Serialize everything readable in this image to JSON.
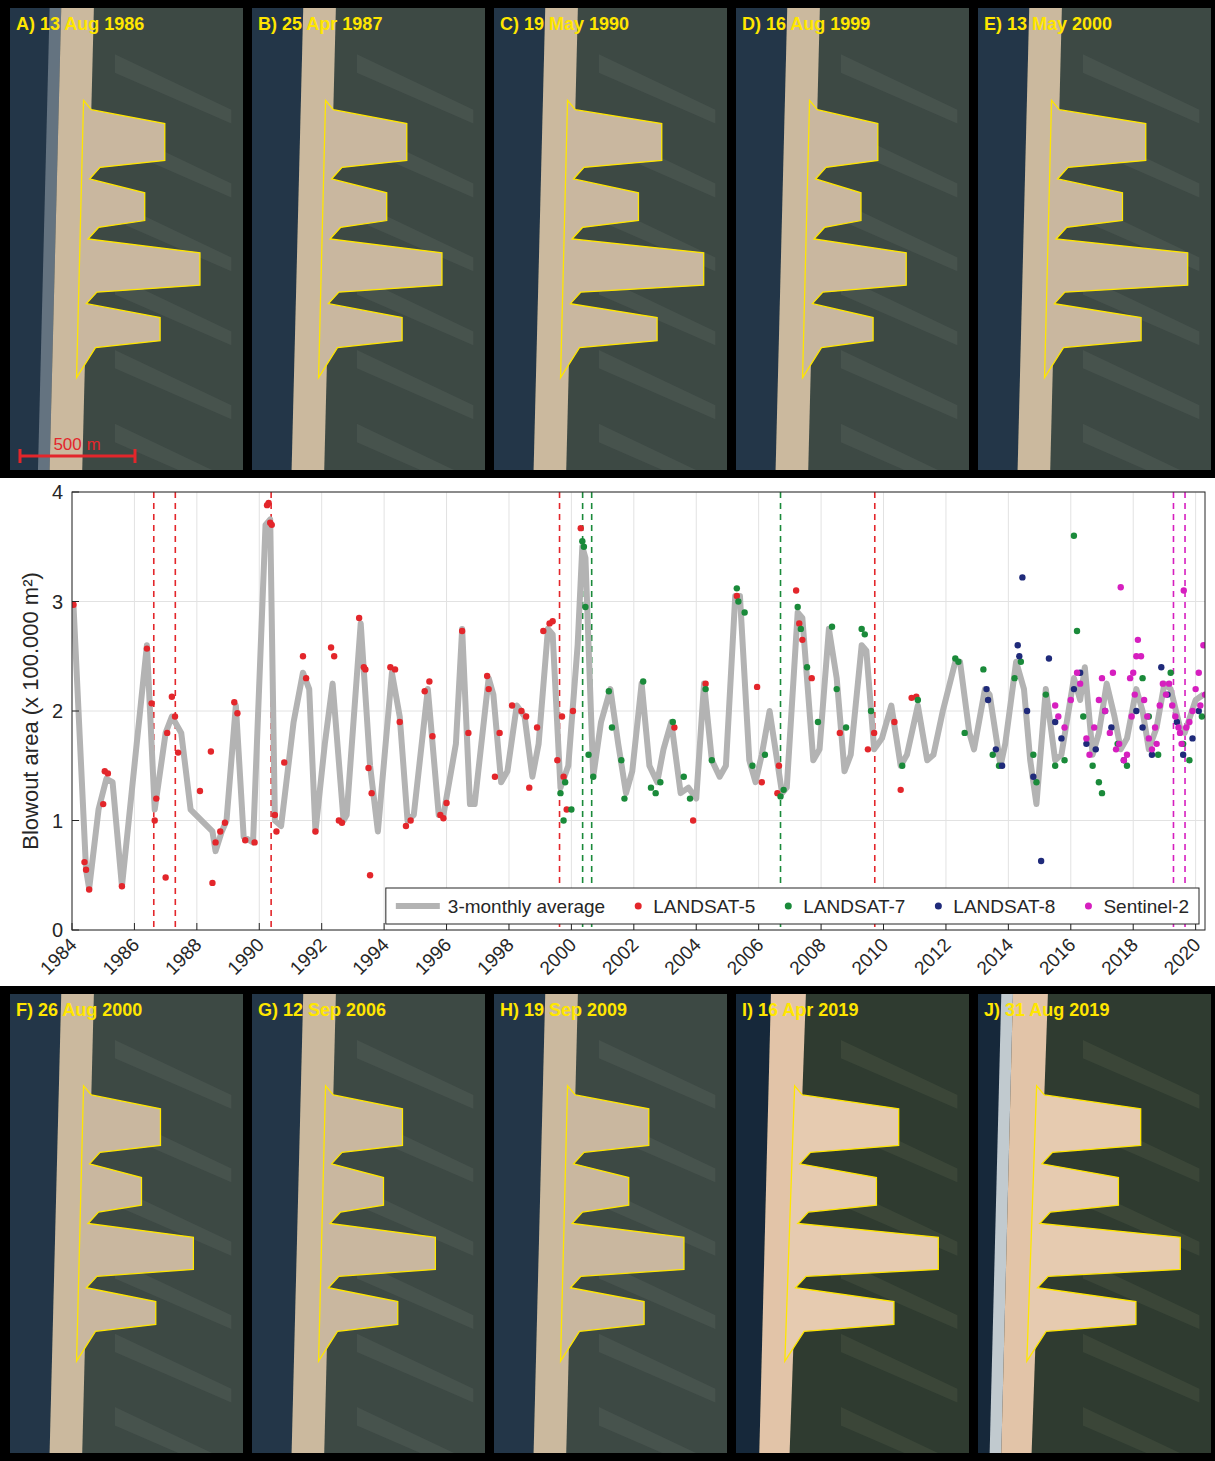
{
  "images": {
    "scale_bar": "500 m",
    "top": [
      "A) 13 Aug 1986",
      "B) 25 Apr 1987",
      "C) 19 May 1990",
      "D) 16 Aug 1999",
      "E) 13 May 2000"
    ],
    "bottom": [
      "F) 26 Aug 2000",
      "G) 12 Sep 2006",
      "H) 19 Sep 2009",
      "I) 16 Apr 2019",
      "J) 31 Aug 2019"
    ]
  },
  "chart_data": {
    "type": "line",
    "y_label": "Blowout area (x 100.000 m²)",
    "xlim": [
      1984,
      2020.3
    ],
    "xticks": [
      1984,
      1986,
      1988,
      1990,
      1992,
      1994,
      1996,
      1998,
      2000,
      2002,
      2004,
      2006,
      2008,
      2010,
      2012,
      2014,
      2016,
      2018,
      2020
    ],
    "ylim": [
      0,
      4
    ],
    "yticks": [
      0,
      1,
      2,
      3,
      4
    ],
    "grid": true,
    "legend": "lower right",
    "series": [
      {
        "name": "3-monthly average",
        "type": "line",
        "line_style": "solid",
        "color": "#b3b3b3",
        "x": [
          1984.05,
          1984.45,
          1984.55,
          1984.85,
          1985.1,
          1985.3,
          1985.6,
          1986.4,
          1986.65,
          1987.0,
          1987.2,
          1987.5,
          1987.8,
          1988.5,
          1988.6,
          1988.8,
          1988.95,
          1989.25,
          1989.5,
          1989.8,
          1990.2,
          1990.35,
          1990.5,
          1990.7,
          1991.1,
          1991.4,
          1991.6,
          1991.8,
          1992.1,
          1992.35,
          1992.7,
          1992.8,
          1993.25,
          1993.55,
          1993.8,
          1994.25,
          1994.5,
          1994.75,
          1994.95,
          1995.4,
          1995.75,
          1995.9,
          1996.3,
          1996.5,
          1996.75,
          1996.9,
          1997.35,
          1997.5,
          1997.75,
          1997.95,
          1998.25,
          1998.5,
          1998.75,
          1998.95,
          1999.25,
          1999.4,
          1999.65,
          1999.9,
          2000.2,
          2000.35,
          2000.45,
          2000.7,
          2000.95,
          2001.25,
          2001.5,
          2001.75,
          2001.95,
          2002.25,
          2002.5,
          2002.75,
          2002.95,
          2003.2,
          2003.5,
          2003.75,
          2004.0,
          2004.25,
          2004.5,
          2004.75,
          2004.95,
          2005.25,
          2005.4,
          2005.7,
          2005.9,
          2006.1,
          2006.35,
          2006.75,
          2006.9,
          2007.25,
          2007.4,
          2007.75,
          2007.95,
          2008.25,
          2008.5,
          2008.75,
          2008.95,
          2009.3,
          2009.45,
          2009.7,
          2009.95,
          2010.25,
          2010.55,
          2010.75,
          2011.1,
          2011.4,
          2011.6,
          2011.9,
          2012.3,
          2012.45,
          2012.75,
          2012.9,
          2013.25,
          2013.4,
          2013.75,
          2013.9,
          2014.25,
          2014.5,
          2014.7,
          2014.9,
          2015.2,
          2015.5,
          2015.7,
          2016.1,
          2016.3,
          2016.45,
          2016.7,
          2016.9,
          2017.15,
          2017.4,
          2017.6,
          2017.8,
          2018.1,
          2018.3,
          2018.5,
          2018.75,
          2019.0,
          2019.2,
          2019.5,
          2019.65,
          2020.0,
          2020.25
        ],
        "values": [
          2.95,
          0.55,
          0.38,
          1.1,
          1.38,
          1.35,
          0.4,
          2.6,
          1.1,
          1.8,
          1.95,
          1.8,
          1.1,
          0.9,
          0.72,
          0.9,
          1.0,
          2.05,
          0.85,
          0.8,
          3.7,
          3.75,
          1.0,
          0.95,
          1.9,
          2.35,
          2.2,
          0.9,
          1.7,
          2.25,
          1.0,
          1.05,
          2.8,
          1.5,
          0.9,
          2.35,
          1.95,
          1.0,
          1.05,
          2.2,
          1.05,
          1.05,
          1.7,
          2.75,
          1.15,
          1.15,
          2.3,
          2.15,
          1.35,
          1.45,
          2.05,
          1.95,
          1.4,
          1.7,
          2.75,
          2.7,
          1.3,
          1.5,
          2.6,
          3.5,
          3.4,
          1.4,
          1.9,
          2.2,
          1.7,
          1.25,
          1.45,
          2.25,
          1.5,
          1.35,
          1.65,
          1.9,
          1.25,
          1.3,
          1.2,
          2.25,
          1.55,
          1.4,
          1.5,
          3.05,
          3.05,
          1.55,
          1.35,
          1.6,
          2.0,
          1.25,
          1.3,
          2.9,
          2.85,
          1.55,
          1.65,
          2.75,
          2.3,
          1.45,
          1.6,
          2.6,
          2.55,
          1.65,
          1.75,
          2.05,
          1.5,
          1.6,
          2.05,
          1.55,
          1.6,
          2.0,
          2.45,
          2.45,
          1.8,
          1.65,
          2.2,
          2.15,
          1.5,
          1.7,
          2.45,
          2.2,
          1.55,
          1.15,
          2.2,
          1.55,
          1.6,
          2.3,
          2.1,
          2.4,
          1.6,
          1.8,
          2.25,
          1.95,
          1.65,
          1.75,
          2.2,
          2.0,
          1.65,
          1.85,
          2.25,
          2.2,
          1.85,
          1.8,
          2.1,
          2.15
        ]
      },
      {
        "name": "LANDSAT-5",
        "type": "scatter",
        "marker": "circle",
        "color": "#e3262b",
        "x": [
          1984.05,
          1984.4,
          1984.45,
          1984.55,
          1985.0,
          1985.05,
          1985.15,
          1985.6,
          1986.4,
          1986.55,
          1986.65,
          1986.7,
          1987.0,
          1987.05,
          1987.2,
          1987.3,
          1987.4,
          1988.1,
          1988.45,
          1988.5,
          1988.6,
          1988.75,
          1988.9,
          1989.2,
          1989.3,
          1989.55,
          1989.85,
          1990.25,
          1990.3,
          1990.35,
          1990.4,
          1990.5,
          1990.55,
          1990.8,
          1991.4,
          1991.5,
          1991.8,
          1992.3,
          1992.4,
          1992.55,
          1992.65,
          1993.2,
          1993.35,
          1993.4,
          1993.5,
          1993.6,
          1993.55,
          1994.2,
          1994.35,
          1994.5,
          1994.7,
          1994.85,
          1995.3,
          1995.45,
          1995.55,
          1995.8,
          1995.9,
          1996.0,
          1996.5,
          1996.7,
          1997.3,
          1997.35,
          1997.55,
          1997.7,
          1998.1,
          1998.4,
          1998.55,
          1998.65,
          1998.9,
          1999.1,
          1999.3,
          1999.4,
          1999.55,
          1999.7,
          1999.75,
          1999.85,
          2000.05,
          2000.3,
          2003.3,
          2003.9,
          2004.3,
          2005.3,
          2005.95,
          2006.1,
          2006.6,
          2006.65,
          2007.2,
          2007.3,
          2007.4,
          2007.7,
          2008.6,
          2009.5,
          2009.7,
          2010.35,
          2010.55,
          2010.9,
          2011.05
        ],
        "values": [
          2.97,
          0.62,
          0.55,
          0.37,
          1.15,
          1.45,
          1.43,
          0.4,
          2.57,
          2.07,
          1.0,
          1.2,
          0.48,
          1.8,
          2.13,
          1.95,
          1.62,
          1.27,
          1.63,
          0.43,
          0.8,
          0.9,
          0.98,
          2.08,
          1.98,
          0.82,
          0.8,
          3.88,
          3.9,
          3.72,
          3.7,
          1.05,
          0.9,
          1.53,
          2.5,
          2.3,
          0.9,
          2.58,
          2.5,
          1.0,
          0.98,
          2.85,
          2.4,
          2.38,
          1.48,
          1.25,
          0.5,
          2.4,
          2.38,
          1.9,
          0.95,
          1.0,
          2.18,
          2.27,
          1.77,
          1.05,
          1.02,
          1.16,
          2.73,
          1.8,
          2.32,
          2.2,
          1.4,
          1.8,
          2.05,
          2.0,
          1.95,
          1.3,
          1.85,
          2.73,
          2.8,
          2.82,
          1.55,
          1.95,
          1.4,
          1.1,
          2.0,
          3.67,
          1.85,
          1.0,
          2.25,
          3.05,
          2.22,
          1.35,
          1.25,
          1.5,
          3.1,
          2.8,
          2.65,
          2.3,
          1.8,
          1.65,
          1.8,
          1.9,
          1.28,
          2.12,
          2.13
        ]
      },
      {
        "name": "LANDSAT-7",
        "type": "scatter",
        "marker": "circle",
        "color": "#1a8a3a",
        "x": [
          1999.65,
          1999.75,
          1999.8,
          2000.0,
          2000.35,
          2000.4,
          2000.45,
          2000.55,
          2000.7,
          2001.2,
          2001.3,
          2001.6,
          2001.7,
          2002.3,
          2002.55,
          2002.7,
          2002.85,
          2003.25,
          2003.6,
          2003.8,
          2004.3,
          2004.5,
          2005.3,
          2005.35,
          2005.55,
          2005.8,
          2006.2,
          2006.7,
          2006.8,
          2007.25,
          2007.35,
          2007.55,
          2007.9,
          2008.35,
          2008.5,
          2008.8,
          2009.3,
          2009.4,
          2009.6,
          2010.6,
          2011.1,
          2012.3,
          2012.4,
          2012.6,
          2013.2,
          2013.5,
          2013.7,
          2014.2,
          2014.4,
          2014.8,
          2014.9,
          2015.2,
          2015.5,
          2015.8,
          2016.1,
          2016.2,
          2016.4,
          2016.7,
          2016.9,
          2017.0,
          2017.5,
          2017.8,
          2018.3,
          2018.5,
          2018.8,
          2019.2,
          2019.6,
          2019.8,
          2020.2
        ],
        "values": [
          1.25,
          1.0,
          1.35,
          1.1,
          3.55,
          3.5,
          2.95,
          1.6,
          1.4,
          2.18,
          1.85,
          1.55,
          1.2,
          2.27,
          1.3,
          1.25,
          1.35,
          1.9,
          1.4,
          1.2,
          2.2,
          1.55,
          3.12,
          3.0,
          2.9,
          1.5,
          1.6,
          1.22,
          1.28,
          2.95,
          2.75,
          2.4,
          1.9,
          2.77,
          2.2,
          1.85,
          2.75,
          2.7,
          2.0,
          1.5,
          2.1,
          2.48,
          2.45,
          1.8,
          2.38,
          1.6,
          1.5,
          2.3,
          2.45,
          1.6,
          1.35,
          2.15,
          1.5,
          1.55,
          3.6,
          2.73,
          1.95,
          1.5,
          1.35,
          1.25,
          1.7,
          1.5,
          2.3,
          1.95,
          1.6,
          2.35,
          1.7,
          1.55,
          1.95
        ]
      },
      {
        "name": "LANDSAT-8",
        "type": "scatter",
        "marker": "circle",
        "color": "#1f2a7a",
        "x": [
          2013.3,
          2013.35,
          2013.6,
          2013.8,
          2014.3,
          2014.35,
          2014.45,
          2014.6,
          2014.8,
          2015.05,
          2015.3,
          2015.5,
          2015.7,
          2016.1,
          2016.3,
          2016.5,
          2016.8,
          2017.1,
          2017.3,
          2017.7,
          2018.1,
          2018.3,
          2018.6,
          2018.9,
          2019.1,
          2019.4,
          2019.6,
          2019.9,
          2020.1
        ],
        "values": [
          2.2,
          2.1,
          1.65,
          1.5,
          2.6,
          2.5,
          3.22,
          2.0,
          1.4,
          0.63,
          2.48,
          1.9,
          1.75,
          2.2,
          2.35,
          1.7,
          1.65,
          2.0,
          1.85,
          1.55,
          2.0,
          1.85,
          1.6,
          2.4,
          2.15,
          1.9,
          1.6,
          1.75,
          2.0
        ]
      },
      {
        "name": "Sentinel-2",
        "type": "scatter",
        "marker": "circle",
        "color": "#d61fbf",
        "x": [
          2015.5,
          2015.6,
          2015.8,
          2016.0,
          2016.2,
          2016.3,
          2016.5,
          2016.6,
          2016.75,
          2016.9,
          2017.0,
          2017.1,
          2017.25,
          2017.35,
          2017.45,
          2017.55,
          2017.6,
          2017.7,
          2017.8,
          2017.9,
          2017.95,
          2018.0,
          2018.05,
          2018.1,
          2018.15,
          2018.25,
          2018.35,
          2018.45,
          2018.5,
          2018.6,
          2018.7,
          2018.75,
          2018.85,
          2018.95,
          2019.05,
          2019.15,
          2019.25,
          2019.35,
          2019.45,
          2019.5,
          2019.55,
          2019.62,
          2019.7,
          2019.8,
          2019.9,
          2020.0,
          2020.1,
          2020.15,
          2020.25,
          2020.3
        ],
        "values": [
          2.05,
          1.95,
          1.85,
          2.1,
          2.35,
          2.25,
          1.75,
          1.6,
          1.85,
          2.1,
          2.3,
          2.0,
          1.8,
          2.35,
          1.65,
          1.7,
          3.13,
          1.55,
          1.6,
          2.3,
          1.95,
          2.35,
          2.15,
          2.5,
          2.65,
          2.5,
          2.1,
          1.95,
          1.75,
          1.65,
          1.85,
          1.7,
          2.05,
          2.25,
          2.15,
          2.25,
          2.05,
          1.95,
          1.85,
          1.8,
          1.7,
          3.1,
          1.85,
          1.9,
          2.0,
          2.2,
          2.35,
          2.05,
          2.6,
          2.15
        ]
      }
    ],
    "reference_lines": [
      {
        "x": 1986.62,
        "color": "#e3262b",
        "line_style": "dashed"
      },
      {
        "x": 1987.31,
        "color": "#e3262b",
        "line_style": "dashed"
      },
      {
        "x": 1990.38,
        "color": "#e3262b",
        "line_style": "dashed"
      },
      {
        "x": 1999.62,
        "color": "#e3262b",
        "line_style": "dashed"
      },
      {
        "x": 2000.36,
        "color": "#1a8a3a",
        "line_style": "dashed"
      },
      {
        "x": 2000.65,
        "color": "#1a8a3a",
        "line_style": "dashed"
      },
      {
        "x": 2006.7,
        "color": "#1a8a3a",
        "line_style": "dashed"
      },
      {
        "x": 2009.72,
        "color": "#e3262b",
        "line_style": "dashed"
      },
      {
        "x": 2019.29,
        "color": "#d61fbf",
        "line_style": "dashed"
      },
      {
        "x": 2019.66,
        "color": "#d61fbf",
        "line_style": "dashed"
      }
    ]
  }
}
